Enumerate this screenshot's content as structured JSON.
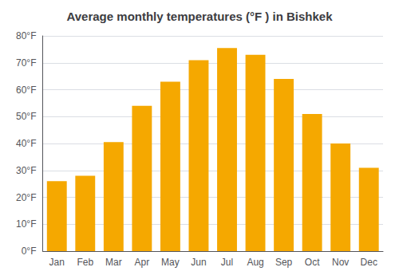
{
  "chart_data": {
    "type": "bar",
    "title": "Average monthly temperatures (°F ) in Bishkek",
    "categories": [
      "Jan",
      "Feb",
      "Mar",
      "Apr",
      "May",
      "Jun",
      "Jul",
      "Aug",
      "Sep",
      "Oct",
      "Nov",
      "Dec"
    ],
    "values": [
      26,
      28,
      40.5,
      54,
      63,
      71,
      75.5,
      73,
      64,
      51,
      40,
      31
    ],
    "color": "#F5A800",
    "ylim": [
      0,
      80
    ],
    "yticks": [
      {
        "value": 0,
        "label": "0°F"
      },
      {
        "value": 10,
        "label": "10°F"
      },
      {
        "value": 20,
        "label": "20°F"
      },
      {
        "value": 30,
        "label": "30°F"
      },
      {
        "value": 40,
        "label": "40°F"
      },
      {
        "value": 50,
        "label": "50°F"
      },
      {
        "value": 60,
        "label": "60°F"
      },
      {
        "value": 70,
        "label": "70°F"
      },
      {
        "value": 80,
        "label": "80°F"
      }
    ],
    "grid": true
  }
}
